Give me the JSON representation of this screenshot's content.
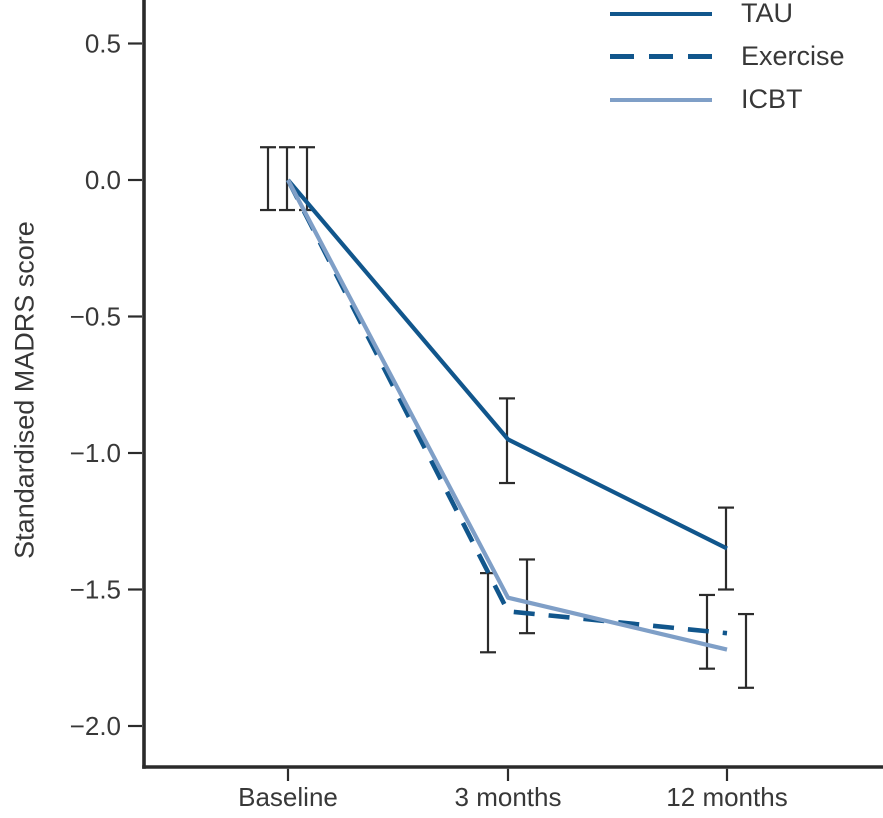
{
  "colors": {
    "dark_blue": "#11568c",
    "light_blue": "#7f9fc7",
    "axis": "#2b2b2b",
    "text": "#383838"
  },
  "legend": {
    "items": [
      {
        "label": "TAU",
        "style": "solid-dark"
      },
      {
        "label": "Exercise",
        "style": "dashed-dark"
      },
      {
        "label": "ICBT",
        "style": "solid-light"
      }
    ]
  },
  "chart_data": {
    "type": "line",
    "title": "",
    "xlabel": "",
    "ylabel": "Standardised MADRS score",
    "categories": [
      "Baseline",
      "3 months",
      "12 months"
    ],
    "y_ticks": [
      0.5,
      0.0,
      -0.5,
      -1.0,
      -1.5,
      -2.0
    ],
    "y_tick_labels": [
      "0.5",
      "0.0",
      "−0.5",
      "−1.0",
      "−1.5",
      "−2.0"
    ],
    "ylim": [
      -2.17,
      0.66
    ],
    "grid": false,
    "legend_position": "top-right",
    "error_bars": true,
    "series": [
      {
        "name": "TAU",
        "line": "solid",
        "color": "#11568c",
        "values": [
          0.0,
          -0.95,
          -1.35
        ],
        "ci_low": [
          -0.11,
          -1.11,
          -1.5
        ],
        "ci_high": [
          0.12,
          -0.8,
          -1.2
        ]
      },
      {
        "name": "Exercise",
        "line": "dashed",
        "color": "#11568c",
        "values": [
          0.0,
          -1.58,
          -1.66
        ],
        "ci_low": [
          -0.11,
          -1.73,
          -1.79
        ],
        "ci_high": [
          0.12,
          -1.44,
          -1.52
        ]
      },
      {
        "name": "ICBT",
        "line": "solid",
        "color": "#7f9fc7",
        "values": [
          0.0,
          -1.53,
          -1.72
        ],
        "ci_low": [
          -0.11,
          -1.66,
          -1.86
        ],
        "ci_high": [
          0.12,
          -1.39,
          -1.59
        ]
      }
    ]
  }
}
